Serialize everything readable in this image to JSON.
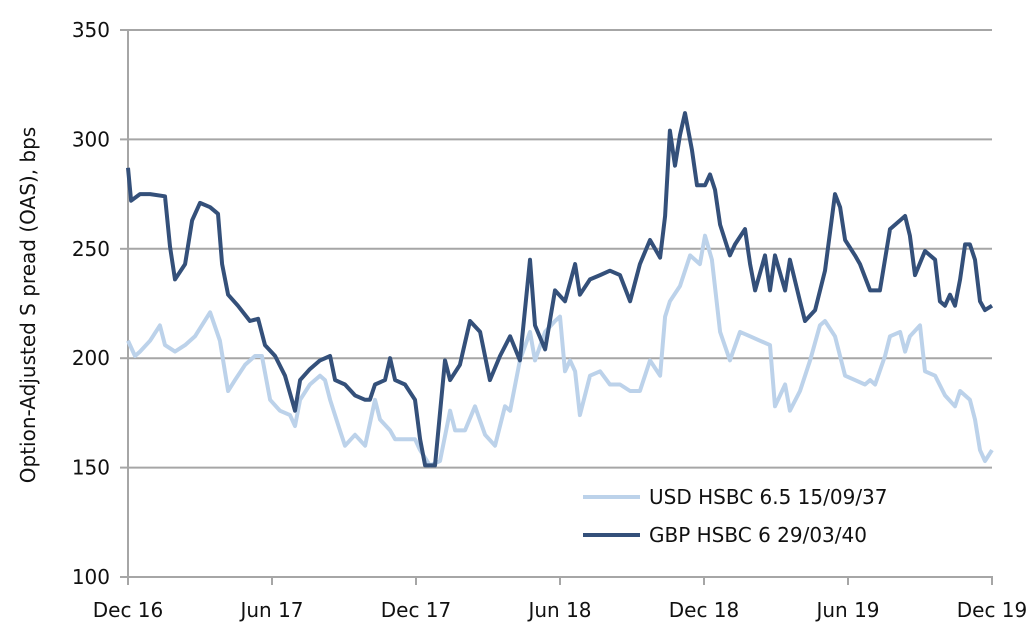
{
  "chart_data": {
    "type": "line",
    "title": "",
    "xlabel": "",
    "ylabel": "Option-Adjusted S pread (OAS), bps",
    "ylim": [
      100,
      350
    ],
    "yticks": [
      100,
      150,
      200,
      250,
      300,
      350
    ],
    "xlim": [
      0,
      36
    ],
    "xticks": [
      {
        "x": 0,
        "label": "Dec 16"
      },
      {
        "x": 6,
        "label": "Jun 17"
      },
      {
        "x": 12,
        "label": "Dec 17"
      },
      {
        "x": 18,
        "label": "Jun 18"
      },
      {
        "x": 24,
        "label": "Dec 18"
      },
      {
        "x": 30,
        "label": "Jun 19"
      },
      {
        "x": 36,
        "label": "Dec 19"
      }
    ],
    "grid": "horizontal",
    "legend_position": "bottom-right",
    "series": [
      {
        "name": "USD HSBC 6.5 15/09/37",
        "color": "#bcd2ea",
        "points": [
          [
            0,
            208
          ],
          [
            0.29,
            201
          ],
          [
            0.5,
            203
          ],
          [
            0.92,
            208
          ],
          [
            1.33,
            215
          ],
          [
            1.54,
            206
          ],
          [
            1.96,
            203
          ],
          [
            2.38,
            206
          ],
          [
            2.79,
            210
          ],
          [
            3.42,
            221
          ],
          [
            3.83,
            208
          ],
          [
            4.17,
            185
          ],
          [
            4.46,
            190
          ],
          [
            4.88,
            197
          ],
          [
            5.29,
            201
          ],
          [
            5.58,
            201
          ],
          [
            5.92,
            181
          ],
          [
            6.33,
            176
          ],
          [
            6.75,
            174
          ],
          [
            6.96,
            169
          ],
          [
            7.17,
            181
          ],
          [
            7.58,
            188
          ],
          [
            8,
            192
          ],
          [
            8.21,
            190
          ],
          [
            8.42,
            181
          ],
          [
            8.83,
            167
          ],
          [
            9.04,
            160
          ],
          [
            9.46,
            165
          ],
          [
            9.88,
            160
          ],
          [
            10.29,
            181
          ],
          [
            10.5,
            172
          ],
          [
            10.92,
            167
          ],
          [
            11.13,
            163
          ],
          [
            11.54,
            163
          ],
          [
            11.96,
            163
          ],
          [
            12.17,
            158
          ],
          [
            12.58,
            151
          ],
          [
            13,
            153
          ],
          [
            13.42,
            176
          ],
          [
            13.63,
            167
          ],
          [
            14.04,
            167
          ],
          [
            14.46,
            178
          ],
          [
            14.88,
            165
          ],
          [
            15.29,
            160
          ],
          [
            15.71,
            178
          ],
          [
            15.92,
            176
          ],
          [
            16.33,
            199
          ],
          [
            16.75,
            212
          ],
          [
            16.96,
            199
          ],
          [
            17.38,
            212
          ],
          [
            17.79,
            217
          ],
          [
            18,
            219
          ],
          [
            18.21,
            194
          ],
          [
            18.42,
            199
          ],
          [
            18.63,
            194
          ],
          [
            18.83,
            174
          ],
          [
            19.25,
            192
          ],
          [
            19.67,
            194
          ],
          [
            20.08,
            188
          ],
          [
            20.5,
            188
          ],
          [
            20.92,
            185
          ],
          [
            21.33,
            185
          ],
          [
            21.75,
            199
          ],
          [
            22.17,
            192
          ],
          [
            22.38,
            219
          ],
          [
            22.58,
            226
          ],
          [
            23,
            233
          ],
          [
            23.42,
            247
          ],
          [
            23.83,
            243
          ],
          [
            24.04,
            256
          ],
          [
            24.33,
            245
          ],
          [
            24.67,
            212
          ],
          [
            25.08,
            199
          ],
          [
            25.5,
            212
          ],
          [
            25.92,
            210
          ],
          [
            26.33,
            208
          ],
          [
            26.75,
            206
          ],
          [
            26.96,
            178
          ],
          [
            27.38,
            188
          ],
          [
            27.58,
            176
          ],
          [
            28,
            185
          ],
          [
            28.42,
            199
          ],
          [
            28.83,
            215
          ],
          [
            29.04,
            217
          ],
          [
            29.46,
            210
          ],
          [
            29.88,
            192
          ],
          [
            30.29,
            190
          ],
          [
            30.71,
            188
          ],
          [
            30.92,
            190
          ],
          [
            31.13,
            188
          ],
          [
            31.54,
            201
          ],
          [
            31.75,
            210
          ],
          [
            32.17,
            212
          ],
          [
            32.38,
            203
          ],
          [
            32.58,
            210
          ],
          [
            33,
            215
          ],
          [
            33.21,
            194
          ],
          [
            33.63,
            192
          ],
          [
            34.04,
            183
          ],
          [
            34.46,
            178
          ],
          [
            34.67,
            185
          ],
          [
            35.08,
            181
          ],
          [
            35.29,
            172
          ],
          [
            35.5,
            158
          ],
          [
            35.71,
            153
          ],
          [
            36,
            158
          ]
        ]
      },
      {
        "name": "GBP HSBC 6 29/03/40",
        "color": "#34507a",
        "points": [
          [
            0,
            287
          ],
          [
            0.13,
            272
          ],
          [
            0.5,
            275
          ],
          [
            0.92,
            275
          ],
          [
            1.54,
            274
          ],
          [
            1.75,
            251
          ],
          [
            1.96,
            236
          ],
          [
            2.38,
            243
          ],
          [
            2.67,
            263
          ],
          [
            3,
            271
          ],
          [
            3.42,
            269
          ],
          [
            3.75,
            266
          ],
          [
            3.92,
            243
          ],
          [
            4.17,
            229
          ],
          [
            4.58,
            224
          ],
          [
            5.08,
            217
          ],
          [
            5.42,
            218
          ],
          [
            5.71,
            206
          ],
          [
            6.13,
            201
          ],
          [
            6.54,
            192
          ],
          [
            6.96,
            176
          ],
          [
            7.17,
            190
          ],
          [
            7.58,
            195
          ],
          [
            8,
            199
          ],
          [
            8.42,
            201
          ],
          [
            8.63,
            190
          ],
          [
            9.04,
            188
          ],
          [
            9.46,
            183
          ],
          [
            9.88,
            181
          ],
          [
            10.08,
            181
          ],
          [
            10.29,
            188
          ],
          [
            10.71,
            190
          ],
          [
            10.92,
            200
          ],
          [
            11.13,
            190
          ],
          [
            11.54,
            188
          ],
          [
            11.96,
            181
          ],
          [
            12.17,
            163
          ],
          [
            12.38,
            151
          ],
          [
            12.79,
            151
          ],
          [
            13.21,
            199
          ],
          [
            13.42,
            190
          ],
          [
            13.83,
            197
          ],
          [
            14.25,
            217
          ],
          [
            14.67,
            212
          ],
          [
            15.08,
            190
          ],
          [
            15.5,
            201
          ],
          [
            15.92,
            210
          ],
          [
            16.33,
            199
          ],
          [
            16.75,
            245
          ],
          [
            16.96,
            215
          ],
          [
            17.38,
            204
          ],
          [
            17.79,
            231
          ],
          [
            18.21,
            226
          ],
          [
            18.63,
            243
          ],
          [
            18.83,
            229
          ],
          [
            19.25,
            236
          ],
          [
            19.67,
            238
          ],
          [
            20.08,
            240
          ],
          [
            20.5,
            238
          ],
          [
            20.92,
            226
          ],
          [
            21.33,
            243
          ],
          [
            21.75,
            254
          ],
          [
            22.17,
            246
          ],
          [
            22.38,
            265
          ],
          [
            22.58,
            304
          ],
          [
            22.79,
            288
          ],
          [
            23,
            302
          ],
          [
            23.21,
            312
          ],
          [
            23.5,
            295
          ],
          [
            23.71,
            279
          ],
          [
            24.04,
            279
          ],
          [
            24.25,
            284
          ],
          [
            24.46,
            277
          ],
          [
            24.67,
            261
          ],
          [
            25.08,
            247
          ],
          [
            25.29,
            252
          ],
          [
            25.71,
            259
          ],
          [
            25.92,
            243
          ],
          [
            26.13,
            231
          ],
          [
            26.54,
            247
          ],
          [
            26.75,
            231
          ],
          [
            26.96,
            247
          ],
          [
            27.38,
            231
          ],
          [
            27.58,
            245
          ],
          [
            28,
            226
          ],
          [
            28.21,
            217
          ],
          [
            28.63,
            222
          ],
          [
            29.04,
            240
          ],
          [
            29.46,
            275
          ],
          [
            29.67,
            269
          ],
          [
            29.88,
            254
          ],
          [
            30.29,
            247
          ],
          [
            30.5,
            243
          ],
          [
            30.92,
            231
          ],
          [
            31.33,
            231
          ],
          [
            31.75,
            259
          ],
          [
            32.17,
            263
          ],
          [
            32.38,
            265
          ],
          [
            32.58,
            256
          ],
          [
            32.79,
            238
          ],
          [
            33.21,
            249
          ],
          [
            33.63,
            245
          ],
          [
            33.83,
            226
          ],
          [
            34.04,
            224
          ],
          [
            34.25,
            229
          ],
          [
            34.46,
            224
          ],
          [
            34.67,
            236
          ],
          [
            34.88,
            252
          ],
          [
            35.08,
            252
          ],
          [
            35.29,
            245
          ],
          [
            35.5,
            226
          ],
          [
            35.71,
            222
          ],
          [
            36,
            224
          ]
        ]
      }
    ]
  }
}
